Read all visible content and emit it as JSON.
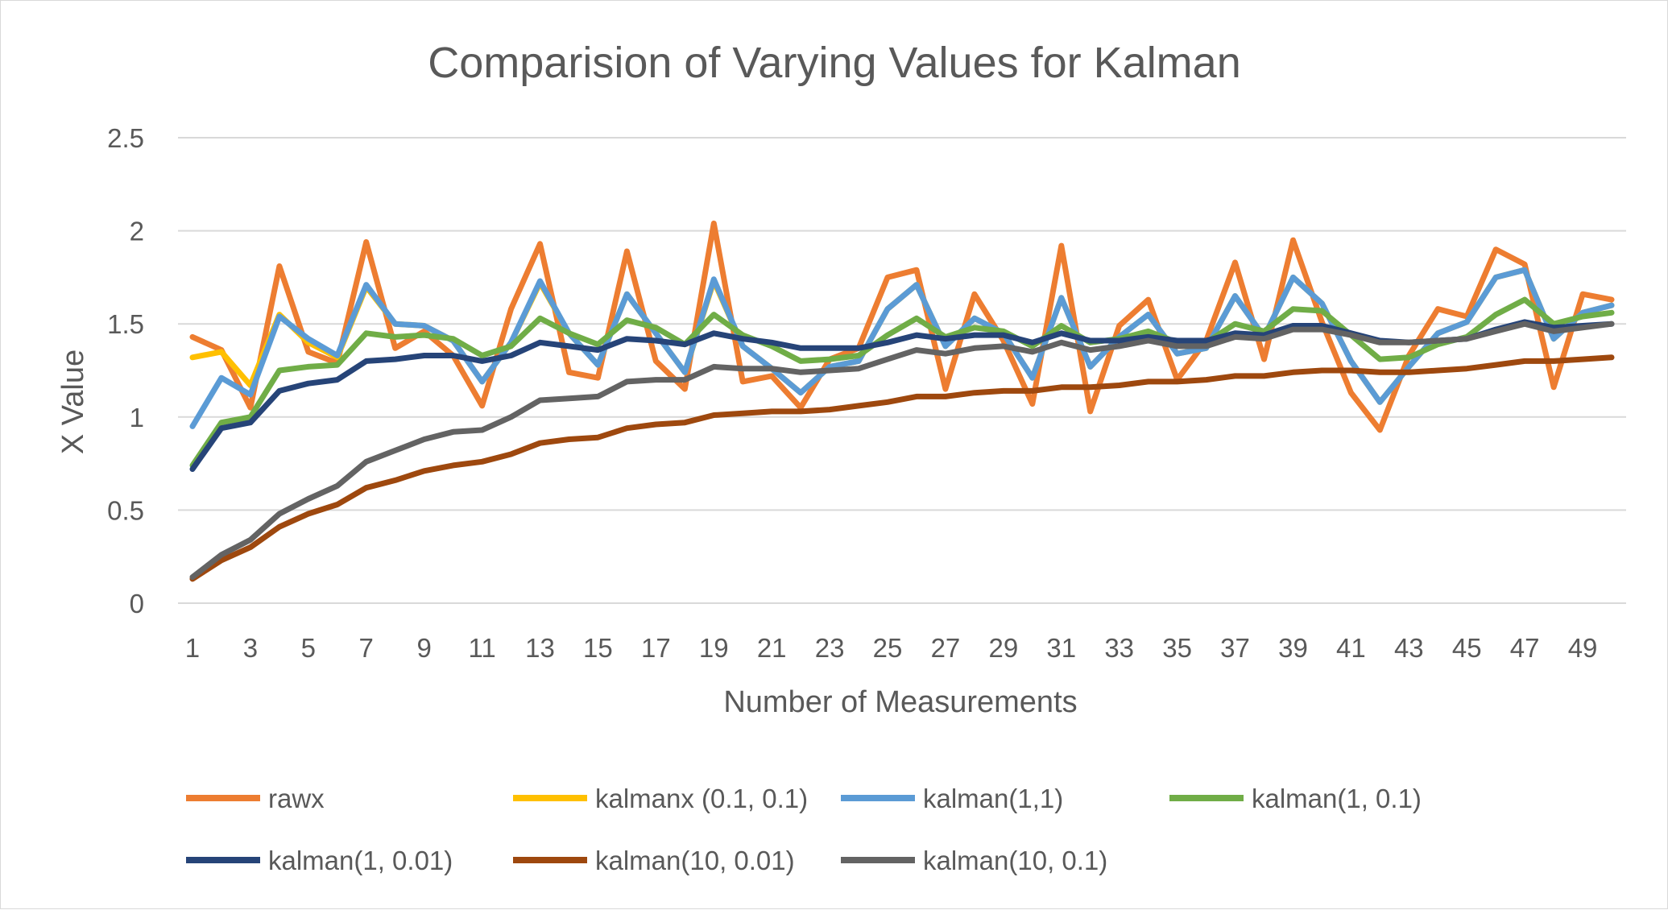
{
  "chart_data": {
    "type": "line",
    "title": "Comparision of Varying Values for Kalman",
    "xlabel": "Number of Measurements",
    "ylabel": "X Value",
    "ylim": [
      0,
      2.5
    ],
    "yticks": [
      "0",
      "0.5",
      "1",
      "1.5",
      "2",
      "2.5"
    ],
    "x": [
      1,
      2,
      3,
      4,
      5,
      6,
      7,
      8,
      9,
      10,
      11,
      12,
      13,
      14,
      15,
      16,
      17,
      18,
      19,
      20,
      21,
      22,
      23,
      24,
      25,
      26,
      27,
      28,
      29,
      30,
      31,
      32,
      33,
      34,
      35,
      36,
      37,
      38,
      39,
      40,
      41,
      42,
      43,
      44,
      45,
      46,
      47,
      48,
      49,
      50
    ],
    "xticks": [
      "1",
      "3",
      "5",
      "7",
      "9",
      "11",
      "13",
      "15",
      "17",
      "19",
      "21",
      "23",
      "25",
      "27",
      "29",
      "31",
      "33",
      "35",
      "37",
      "39",
      "41",
      "43",
      "45",
      "47",
      "49"
    ],
    "grid": "horizontal",
    "legend_position": "bottom",
    "series": [
      {
        "name": "rawx",
        "color": "#ED7D31",
        "values": [
          1.43,
          1.36,
          1.05,
          1.81,
          1.35,
          1.29,
          1.94,
          1.37,
          1.46,
          1.33,
          1.06,
          1.58,
          1.93,
          1.24,
          1.21,
          1.89,
          1.3,
          1.15,
          2.04,
          1.19,
          1.22,
          1.05,
          1.31,
          1.37,
          1.75,
          1.79,
          1.15,
          1.66,
          1.41,
          1.07,
          1.92,
          1.03,
          1.49,
          1.63,
          1.2,
          1.41,
          1.83,
          1.31,
          1.95,
          1.51,
          1.13,
          0.93,
          1.33,
          1.58,
          1.54,
          1.9,
          1.82,
          1.16,
          1.66,
          1.63
        ]
      },
      {
        "name": "kalmanx (0.1, 0.1)",
        "color": "#FFC000",
        "values": [
          1.32,
          1.35,
          1.17,
          1.55,
          1.4,
          1.32,
          1.7,
          1.5,
          1.49,
          1.41,
          1.19,
          1.4,
          1.72,
          1.45,
          1.28,
          1.66,
          1.45,
          1.24,
          1.73,
          1.38,
          1.26,
          1.13,
          1.27,
          1.3,
          1.58,
          1.71,
          1.38,
          1.53,
          1.45,
          1.21,
          1.64,
          1.27,
          1.43,
          1.55,
          1.34,
          1.37,
          1.65,
          1.43,
          1.75,
          1.61,
          1.3,
          1.08,
          1.27,
          1.45,
          1.51,
          1.75,
          1.79,
          1.42,
          1.56,
          1.6
        ]
      },
      {
        "name": "kalman(1,1)",
        "color": "#5B9BD5",
        "values": [
          0.95,
          1.21,
          1.12,
          1.54,
          1.42,
          1.33,
          1.71,
          1.5,
          1.49,
          1.41,
          1.19,
          1.4,
          1.73,
          1.45,
          1.28,
          1.66,
          1.45,
          1.24,
          1.74,
          1.38,
          1.26,
          1.13,
          1.27,
          1.3,
          1.58,
          1.71,
          1.38,
          1.53,
          1.45,
          1.21,
          1.64,
          1.27,
          1.43,
          1.55,
          1.34,
          1.37,
          1.65,
          1.43,
          1.75,
          1.61,
          1.3,
          1.08,
          1.27,
          1.45,
          1.51,
          1.75,
          1.79,
          1.42,
          1.56,
          1.6
        ]
      },
      {
        "name": "kalman(1, 0.1)",
        "color": "#70AD47",
        "values": [
          0.74,
          0.97,
          1.0,
          1.25,
          1.27,
          1.28,
          1.45,
          1.43,
          1.44,
          1.42,
          1.33,
          1.38,
          1.53,
          1.45,
          1.39,
          1.52,
          1.48,
          1.39,
          1.55,
          1.44,
          1.38,
          1.3,
          1.31,
          1.33,
          1.44,
          1.53,
          1.43,
          1.48,
          1.46,
          1.38,
          1.49,
          1.4,
          1.42,
          1.46,
          1.4,
          1.4,
          1.5,
          1.46,
          1.58,
          1.57,
          1.44,
          1.31,
          1.32,
          1.39,
          1.43,
          1.55,
          1.63,
          1.5,
          1.54,
          1.56
        ]
      },
      {
        "name": "kalman(1, 0.01)",
        "color": "#264478",
        "values": [
          0.72,
          0.94,
          0.97,
          1.14,
          1.18,
          1.2,
          1.3,
          1.31,
          1.33,
          1.33,
          1.3,
          1.33,
          1.4,
          1.38,
          1.36,
          1.42,
          1.41,
          1.39,
          1.45,
          1.42,
          1.4,
          1.37,
          1.37,
          1.37,
          1.4,
          1.44,
          1.42,
          1.44,
          1.44,
          1.4,
          1.45,
          1.41,
          1.41,
          1.43,
          1.41,
          1.41,
          1.45,
          1.44,
          1.49,
          1.49,
          1.45,
          1.41,
          1.4,
          1.41,
          1.42,
          1.47,
          1.51,
          1.48,
          1.49,
          1.5
        ]
      },
      {
        "name": "kalman(10, 0.01)",
        "color": "#9E480E",
        "values": [
          0.13,
          0.23,
          0.3,
          0.41,
          0.48,
          0.53,
          0.62,
          0.66,
          0.71,
          0.74,
          0.76,
          0.8,
          0.86,
          0.88,
          0.89,
          0.94,
          0.96,
          0.97,
          1.01,
          1.02,
          1.03,
          1.03,
          1.04,
          1.06,
          1.08,
          1.11,
          1.11,
          1.13,
          1.14,
          1.14,
          1.16,
          1.16,
          1.17,
          1.19,
          1.19,
          1.2,
          1.22,
          1.22,
          1.24,
          1.25,
          1.25,
          1.24,
          1.24,
          1.25,
          1.26,
          1.28,
          1.3,
          1.3,
          1.31,
          1.32
        ]
      },
      {
        "name": "kalman(10, 0.1)",
        "color": "#636363",
        "values": [
          0.14,
          0.26,
          0.34,
          0.48,
          0.56,
          0.63,
          0.76,
          0.82,
          0.88,
          0.92,
          0.93,
          1.0,
          1.09,
          1.1,
          1.11,
          1.19,
          1.2,
          1.2,
          1.27,
          1.26,
          1.26,
          1.24,
          1.25,
          1.26,
          1.31,
          1.36,
          1.34,
          1.37,
          1.38,
          1.35,
          1.4,
          1.36,
          1.38,
          1.41,
          1.38,
          1.38,
          1.43,
          1.42,
          1.47,
          1.47,
          1.44,
          1.4,
          1.4,
          1.41,
          1.42,
          1.46,
          1.5,
          1.46,
          1.48,
          1.5
        ]
      }
    ]
  }
}
